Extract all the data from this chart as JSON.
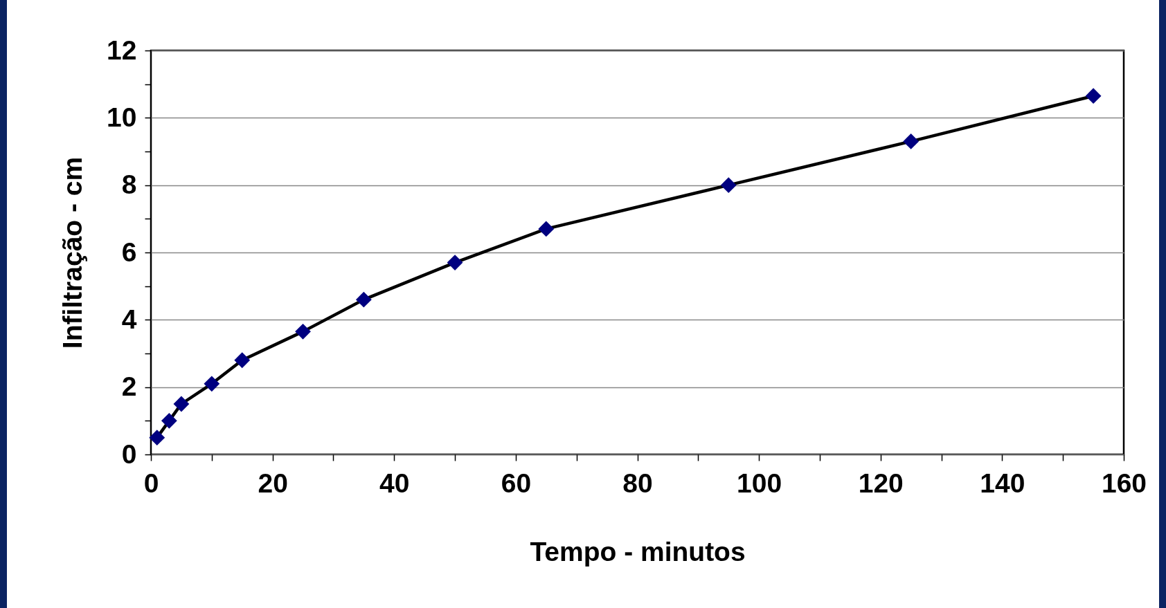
{
  "chart_data": {
    "type": "line",
    "xlabel": "Tempo - minutos",
    "ylabel": "Infiltração - cm",
    "x": [
      1,
      3,
      5,
      10,
      15,
      25,
      35,
      50,
      65,
      95,
      125,
      155
    ],
    "series": [
      {
        "color": "#000080",
        "values": [
          0.5,
          1.0,
          1.5,
          2.1,
          2.8,
          3.65,
          4.6,
          5.7,
          6.7,
          8.0,
          9.3,
          10.65
        ]
      }
    ],
    "xlim": [
      0,
      160
    ],
    "xticks": [
      0,
      {
        "value": 10,
        "label": null
      },
      20,
      {
        "value": 30,
        "label": null
      },
      40,
      {
        "value": 50,
        "label": null
      },
      60,
      {
        "value": 70,
        "label": null
      },
      80,
      {
        "value": 90,
        "label": null
      },
      100,
      {
        "value": 110,
        "label": null
      },
      120,
      {
        "value": 130,
        "label": null
      },
      140,
      {
        "value": 150,
        "label": null
      },
      160
    ],
    "ylim": [
      0,
      12
    ],
    "yticks": [
      0,
      {
        "value": 1,
        "label": null
      },
      2,
      {
        "value": 3,
        "label": null
      },
      4,
      {
        "value": 5,
        "label": null
      },
      6,
      {
        "value": 7,
        "label": null
      },
      8,
      {
        "value": 9,
        "label": null
      },
      10,
      {
        "value": 11,
        "label": null
      },
      12
    ],
    "grid": "y",
    "marker": "diamond",
    "line_style": "solid"
  }
}
